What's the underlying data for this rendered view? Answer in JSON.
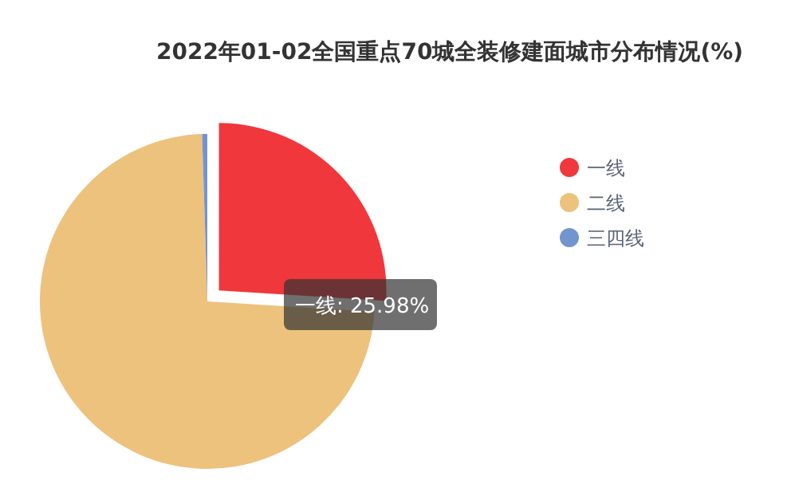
{
  "chart_data": {
    "type": "pie",
    "title": "2022年01-02全国重点70城全装修建面城市分布情况(%)",
    "categories": [
      "一线",
      "二线",
      "三四线"
    ],
    "values": [
      25.98,
      73.52,
      0.5
    ],
    "colors": [
      "#f0373c",
      "#edc27d",
      "#7395cf"
    ],
    "value_labels": [
      "一线: 25.98%",
      null,
      null
    ],
    "legend": "right"
  }
}
